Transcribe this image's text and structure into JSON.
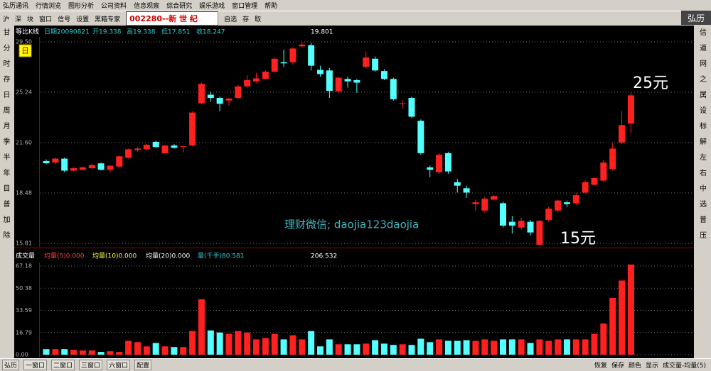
{
  "ui": {
    "menu": [
      "弘历通讯",
      "行情浏览",
      "图形分析",
      "公司资料",
      "信息观察",
      "综合研究",
      "娱乐游戏",
      "窗口管理",
      "帮助"
    ],
    "toolbar": [
      "沪",
      "深",
      "块",
      "窗口",
      "信号",
      "设置",
      "黑箱专家"
    ],
    "stock_code": "002280--新 世 纪",
    "toolbar_right": [
      "自选",
      "存",
      "取"
    ],
    "brand": "弘历",
    "left_tools": [
      "甘",
      "分",
      "时",
      "存",
      "日",
      "周",
      "月",
      "季",
      "半",
      "年",
      "目",
      "普",
      "加",
      "除"
    ],
    "right_tools": [
      "信",
      "道",
      "网",
      "之",
      "属",
      "设",
      "标",
      "解",
      "左",
      "右",
      "中",
      "选",
      "普",
      "压"
    ],
    "status_brand": "弘历",
    "bottom_tabs": [
      "一窗口",
      "二窗口",
      "三窗口",
      "六窗口",
      "配置"
    ],
    "bottom_right": [
      "恢复",
      "保存",
      "颜色",
      "显示",
      "成交量-均量(5)"
    ]
  },
  "chart_data": [
    {
      "type": "candlestick",
      "title": "等比K线",
      "period_label": "日",
      "info": [
        {
          "text": "日期20090821",
          "color": "#33cccc"
        },
        {
          "text": "开19.338",
          "color": "#33cccc"
        },
        {
          "text": "高19.338",
          "color": "#33cccc"
        },
        {
          "text": "低17.851",
          "color": "#33cccc"
        },
        {
          "text": "收18.247",
          "color": "#33cccc"
        },
        {
          "text": "19.801",
          "color": "#ffffff"
        }
      ],
      "annotations": [
        {
          "text": "25元",
          "color": "#ffffff"
        },
        {
          "text": "15元",
          "color": "#ffffff"
        },
        {
          "text": "理财微信; daojia123daojia",
          "color": "#3fb8c0"
        }
      ],
      "log_scale": true,
      "grid": true,
      "up_color": "#ff2020",
      "down_color": "#54ffff",
      "ylim": [
        15.81,
        29.5
      ],
      "yticks": [
        {
          "value": 29.5,
          "label": "29.50"
        },
        25.24,
        {
          "value": 21.6,
          "label": "21.60"
        },
        18.48,
        15.81
      ],
      "open": [
        20.4,
        20.3,
        20.55,
        19.8,
        19.85,
        19.95,
        20.25,
        19.85,
        20.05,
        20.6,
        21.1,
        21.15,
        21.65,
        20.9,
        21.4,
        21.3,
        21.4,
        24.4,
        25.05,
        24.8,
        24.6,
        24.8,
        25.7,
        26.1,
        26.3,
        26.9,
        27.7,
        27.7,
        29.1,
        29.2,
        27.05,
        27.0,
        25.3,
        26.3,
        26.2,
        27.3,
        28.0,
        26.95,
        26.3,
        24.35,
        24.8,
        23.1,
        20.0,
        19.7,
        20.9,
        19.1,
        18.75,
        17.85,
        17.5,
        18.1,
        17.9,
        16.9,
        16.6,
        16.9,
        15.74,
        17.0,
        17.5,
        17.95,
        17.9,
        18.5,
        18.95,
        19.2,
        19.9,
        21.6,
        22.9
      ],
      "high": [
        20.5,
        20.6,
        20.6,
        20.0,
        20.05,
        20.2,
        20.3,
        20.15,
        20.75,
        21.2,
        21.3,
        21.5,
        21.7,
        21.45,
        21.5,
        21.4,
        23.8,
        26.0,
        25.3,
        24.9,
        24.8,
        25.8,
        26.6,
        26.8,
        27.0,
        28.1,
        28.8,
        29.0,
        29.5,
        29.4,
        27.4,
        27.2,
        26.5,
        26.5,
        26.3,
        28.6,
        28.2,
        27.1,
        26.4,
        24.6,
        24.9,
        23.2,
        20.1,
        20.9,
        21.0,
        19.3,
        18.9,
        18.1,
        18.25,
        18.35,
        18.0,
        17.2,
        17.1,
        17.0,
        17.0,
        17.7,
        18.1,
        18.05,
        18.5,
        19.2,
        19.4,
        20.45,
        21.6,
        23.8,
        25.2
      ],
      "low": [
        20.2,
        20.2,
        19.7,
        19.75,
        19.8,
        19.9,
        19.8,
        19.7,
        20.0,
        20.55,
        21.0,
        21.1,
        21.25,
        20.85,
        21.2,
        20.95,
        21.35,
        24.3,
        24.5,
        23.8,
        24.2,
        24.7,
        25.6,
        26.0,
        26.25,
        26.8,
        27.3,
        27.5,
        29.0,
        27.0,
        26.5,
        24.8,
        25.2,
        25.6,
        25.2,
        27.2,
        26.9,
        26.2,
        24.6,
        24.0,
        23.3,
        20.8,
        19.4,
        19.6,
        19.6,
        18.5,
        18.2,
        17.5,
        17.4,
        18.05,
        16.6,
        16.3,
        16.5,
        16.2,
        15.7,
        16.9,
        17.4,
        17.7,
        17.8,
        18.45,
        18.9,
        19.1,
        19.8,
        21.5,
        22.2
      ],
      "close": [
        20.26,
        20.55,
        19.8,
        19.95,
        20.0,
        20.15,
        19.85,
        20.1,
        20.7,
        21.15,
        21.2,
        21.45,
        21.3,
        21.4,
        21.25,
        21.35,
        23.7,
        25.9,
        24.8,
        24.35,
        24.75,
        25.7,
        26.2,
        26.35,
        26.9,
        28.0,
        27.6,
        28.9,
        29.25,
        27.4,
        26.7,
        25.35,
        26.4,
        26.1,
        26.0,
        28.1,
        27.0,
        26.3,
        24.7,
        24.4,
        23.4,
        20.9,
        19.85,
        20.8,
        19.75,
        18.9,
        18.5,
        17.95,
        18.15,
        18.3,
        16.7,
        16.7,
        16.95,
        16.35,
        16.95,
        17.6,
        18.05,
        17.85,
        18.35,
        19.1,
        19.35,
        20.3,
        21.2,
        22.8,
        25.0
      ]
    },
    {
      "type": "bar",
      "title": "成交量",
      "info": [
        {
          "text": "均量(5)0.000",
          "color": "#ff4040"
        },
        {
          "text": "均量(10)0.000",
          "color": "#ffff40"
        },
        {
          "text": "均量(20)0.000",
          "color": "#ffffff"
        },
        {
          "text": "量(千手)80.581",
          "color": "#33cccc"
        },
        {
          "text": "206.532",
          "color": "#ffffff"
        }
      ],
      "grid": true,
      "ylim": [
        0,
        67.18
      ],
      "yticks": [
        67.18,
        50.38,
        33.59,
        16.79,
        {
          "value": 0,
          "label": "0.00"
        }
      ],
      "values": [
        4.2,
        4.2,
        4.2,
        3.7,
        3.2,
        3.2,
        2.1,
        2.6,
        2.1,
        10.5,
        9.5,
        6.3,
        8.9,
        6.3,
        5.8,
        5.8,
        17.9,
        42.0,
        18.4,
        16.8,
        15.8,
        17.9,
        16.8,
        11.6,
        12.6,
        15.8,
        11.6,
        14.7,
        11.6,
        17.9,
        6.3,
        11.6,
        7.9,
        7.9,
        7.9,
        8.4,
        11.0,
        8.4,
        7.4,
        7.9,
        7.4,
        12.1,
        9.5,
        11.6,
        10.5,
        10.5,
        11.0,
        10.5,
        11.6,
        10.5,
        11.6,
        11.6,
        11.6,
        8.9,
        11.6,
        10.5,
        11.6,
        11.6,
        11.6,
        11.6,
        15.8,
        23.6,
        43.0,
        56.2,
        68.3
      ]
    }
  ]
}
